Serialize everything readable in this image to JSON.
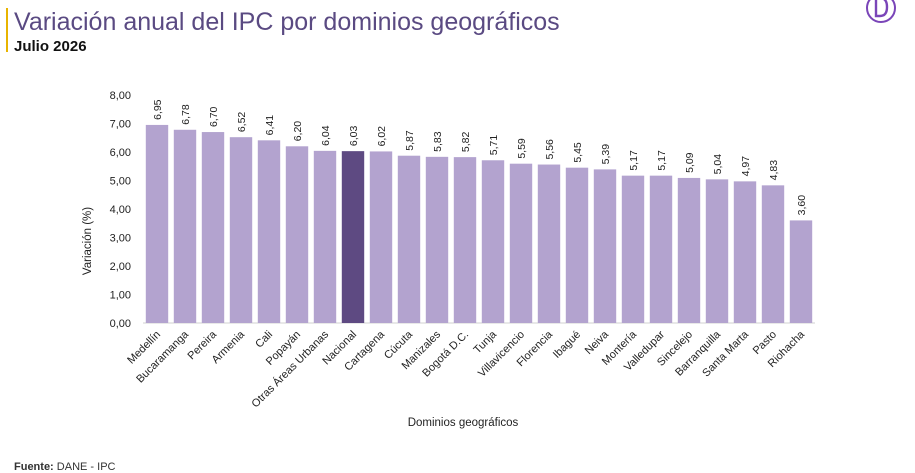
{
  "header": {
    "title": "Variación anual del IPC por dominios geográficos",
    "subtitle": "Julio 2026"
  },
  "footer": {
    "source_label": "Fuente:",
    "source_text": "DANE - IPC"
  },
  "colors": {
    "bar": "#b3a3cf",
    "highlight": "#5e4a82",
    "title": "#5a4a82",
    "accent": "#e8b400",
    "logo": "#7a45b8"
  },
  "chart_data": {
    "type": "bar",
    "title": "",
    "xlabel": "Dominios geográficos",
    "ylabel": "Variación (%)",
    "ylim": [
      0,
      8
    ],
    "yticks": [
      "0,00",
      "1,00",
      "2,00",
      "3,00",
      "4,00",
      "5,00",
      "6,00",
      "7,00",
      "8,00"
    ],
    "grid": false,
    "highlight_category": "Nacional",
    "categories": [
      "Medellín",
      "Bucaramanga",
      "Pereira",
      "Armenia",
      "Cali",
      "Popayán",
      "Otras Áreas Urbanas",
      "Nacional",
      "Cartagena",
      "Cúcuta",
      "Manizales",
      "Bogotá D.C.",
      "Tunja",
      "Villavicencio",
      "Florencia",
      "Ibagué",
      "Neiva",
      "Montería",
      "Valledupar",
      "Sincelejo",
      "Barranquilla",
      "Santa Marta",
      "Pasto",
      "Riohacha"
    ],
    "values": [
      6.95,
      6.78,
      6.7,
      6.52,
      6.41,
      6.2,
      6.04,
      6.03,
      6.02,
      5.87,
      5.83,
      5.82,
      5.71,
      5.59,
      5.56,
      5.45,
      5.39,
      5.17,
      5.17,
      5.09,
      5.04,
      4.97,
      4.83,
      3.6
    ],
    "value_labels": [
      "6,95",
      "6,78",
      "6,70",
      "6,52",
      "6,41",
      "6,20",
      "6,04",
      "6,03",
      "6,02",
      "5,87",
      "5,83",
      "5,82",
      "5,71",
      "5,59",
      "5,56",
      "5,45",
      "5,39",
      "5,17",
      "5,17",
      "5,09",
      "5,04",
      "4,97",
      "4,83",
      "3,60"
    ]
  }
}
